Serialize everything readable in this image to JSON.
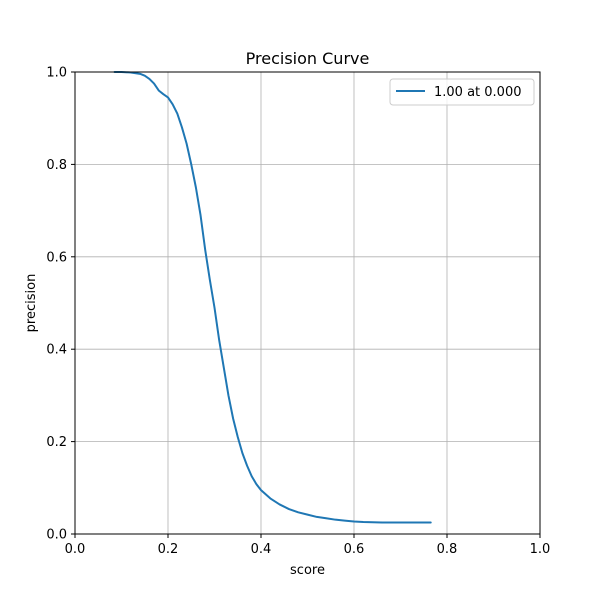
{
  "chart_data": {
    "type": "line",
    "title": "Precision Curve",
    "xlabel": "score",
    "ylabel": "precision",
    "xlim": [
      0,
      1
    ],
    "ylim": [
      0,
      1
    ],
    "x_ticks": [
      0.0,
      0.2,
      0.4,
      0.6,
      0.8,
      1.0
    ],
    "y_ticks": [
      0.0,
      0.2,
      0.4,
      0.6,
      0.8,
      1.0
    ],
    "x_tick_labels": [
      "0.0",
      "0.2",
      "0.4",
      "0.6",
      "0.8",
      "1.0"
    ],
    "y_tick_labels": [
      "0.0",
      "0.2",
      "0.4",
      "0.6",
      "0.8",
      "1.0"
    ],
    "grid": true,
    "legend_position": "top-right",
    "series": [
      {
        "name": "1.00 at 0.000",
        "color": "#1f77b4",
        "x": [
          0.085,
          0.1,
          0.12,
          0.14,
          0.15,
          0.16,
          0.17,
          0.18,
          0.19,
          0.2,
          0.21,
          0.22,
          0.23,
          0.24,
          0.25,
          0.26,
          0.27,
          0.28,
          0.29,
          0.3,
          0.31,
          0.32,
          0.33,
          0.34,
          0.35,
          0.36,
          0.37,
          0.38,
          0.39,
          0.4,
          0.42,
          0.44,
          0.46,
          0.48,
          0.5,
          0.52,
          0.54,
          0.56,
          0.58,
          0.6,
          0.62,
          0.64,
          0.66,
          0.68,
          0.7,
          0.72,
          0.74,
          0.765
        ],
        "y": [
          1.0,
          1.0,
          0.999,
          0.996,
          0.992,
          0.985,
          0.975,
          0.96,
          0.952,
          0.945,
          0.93,
          0.91,
          0.88,
          0.845,
          0.8,
          0.75,
          0.69,
          0.615,
          0.55,
          0.49,
          0.42,
          0.36,
          0.3,
          0.25,
          0.21,
          0.175,
          0.148,
          0.125,
          0.108,
          0.095,
          0.077,
          0.064,
          0.054,
          0.047,
          0.042,
          0.037,
          0.034,
          0.031,
          0.029,
          0.027,
          0.026,
          0.0255,
          0.025,
          0.025,
          0.025,
          0.025,
          0.025,
          0.025
        ]
      }
    ]
  }
}
